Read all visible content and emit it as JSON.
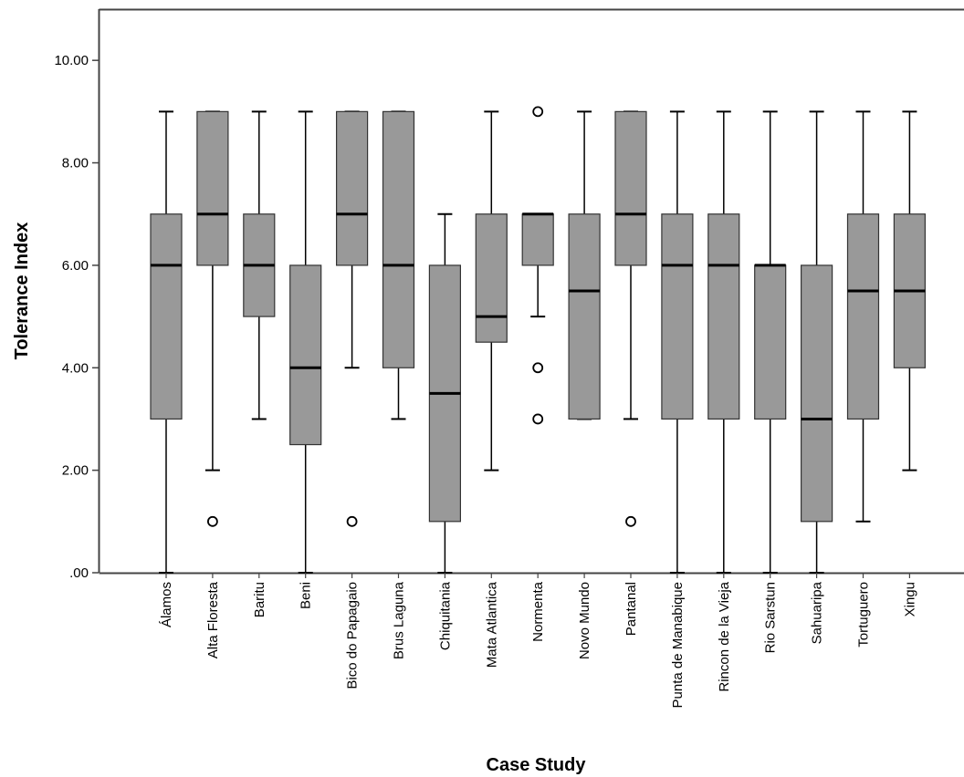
{
  "chart_data": {
    "type": "boxplot",
    "title": "",
    "xlabel": "Case Study",
    "ylabel": "Tolerance Index",
    "ylim": [
      0,
      11
    ],
    "yticks": [
      0,
      2,
      4,
      6,
      8,
      10
    ],
    "ytick_labels": [
      ".00",
      "2.00",
      "4.00",
      "6.00",
      "8.00",
      "10.00"
    ],
    "grid": false,
    "box_color": "#999999",
    "categories": [
      "Álamos",
      "Alta Floresta",
      "Baritu",
      "Beni",
      "Bico do Papagaio",
      "Brus Laguna",
      "Chiquitania",
      "Mata Atlantica",
      "Normenta",
      "Novo Mundo",
      "Pantanal",
      "Punta de Manabique",
      "Rincon de la Vieja",
      "Rio Sarstun",
      "Sahuaripa",
      "Tortuguero",
      "Xingu"
    ],
    "boxes": [
      {
        "whisker_low": 0,
        "q1": 3,
        "median": 6,
        "q3": 7,
        "whisker_high": 9,
        "outliers": []
      },
      {
        "whisker_low": 2,
        "q1": 6,
        "median": 7,
        "q3": 9,
        "whisker_high": 9,
        "outliers": [
          1
        ]
      },
      {
        "whisker_low": 3,
        "q1": 5,
        "median": 6,
        "q3": 7,
        "whisker_high": 9,
        "outliers": []
      },
      {
        "whisker_low": 0,
        "q1": 2.5,
        "median": 4,
        "q3": 6,
        "whisker_high": 9,
        "outliers": []
      },
      {
        "whisker_low": 4,
        "q1": 6,
        "median": 7,
        "q3": 9,
        "whisker_high": 9,
        "outliers": [
          1
        ]
      },
      {
        "whisker_low": 3,
        "q1": 4,
        "median": 6,
        "q3": 9,
        "whisker_high": 9,
        "outliers": []
      },
      {
        "whisker_low": 0,
        "q1": 1,
        "median": 3.5,
        "q3": 6,
        "whisker_high": 7,
        "outliers": []
      },
      {
        "whisker_low": 2,
        "q1": 4.5,
        "median": 5,
        "q3": 7,
        "whisker_high": 9,
        "outliers": []
      },
      {
        "whisker_low": 5,
        "q1": 6,
        "median": 7,
        "q3": 7,
        "whisker_high": 7,
        "outliers": [
          9,
          4,
          3
        ]
      },
      {
        "whisker_low": 3,
        "q1": 3,
        "median": 5.5,
        "q3": 7,
        "whisker_high": 9,
        "outliers": []
      },
      {
        "whisker_low": 3,
        "q1": 6,
        "median": 7,
        "q3": 9,
        "whisker_high": 9,
        "outliers": [
          1
        ]
      },
      {
        "whisker_low": 0,
        "q1": 3,
        "median": 6,
        "q3": 7,
        "whisker_high": 9,
        "outliers": []
      },
      {
        "whisker_low": 0,
        "q1": 3,
        "median": 6,
        "q3": 7,
        "whisker_high": 9,
        "outliers": []
      },
      {
        "whisker_low": 0,
        "q1": 3,
        "median": 6,
        "q3": 6,
        "whisker_high": 9,
        "outliers": []
      },
      {
        "whisker_low": 0,
        "q1": 1,
        "median": 3,
        "q3": 6,
        "whisker_high": 9,
        "outliers": []
      },
      {
        "whisker_low": 1,
        "q1": 3,
        "median": 5.5,
        "q3": 7,
        "whisker_high": 9,
        "outliers": []
      },
      {
        "whisker_low": 2,
        "q1": 4,
        "median": 5.5,
        "q3": 7,
        "whisker_high": 9,
        "outliers": []
      }
    ]
  }
}
